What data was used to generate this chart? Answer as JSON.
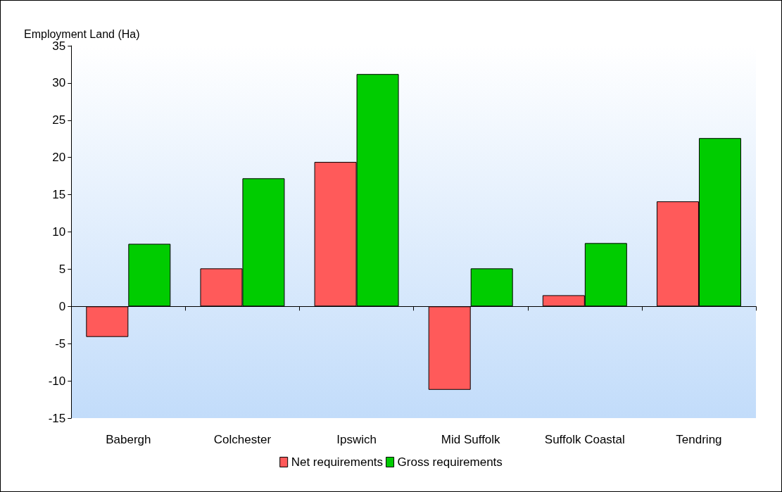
{
  "chart_data": {
    "type": "bar",
    "ylabel": "Employment Land (Ha)",
    "categories": [
      "Babergh",
      "Colchester",
      "Ipswich",
      "Mid Suffolk",
      "Suffolk Coastal",
      "Tendring"
    ],
    "series": [
      {
        "name": "Net requirements",
        "color": "#ff5a5a",
        "values": [
          -4.1,
          5.1,
          19.4,
          -11.2,
          1.5,
          14.1
        ]
      },
      {
        "name": "Gross requirements",
        "color": "#00cc00",
        "values": [
          8.4,
          17.2,
          31.2,
          5.1,
          8.5,
          22.6
        ]
      }
    ],
    "ylim": [
      -15,
      35
    ],
    "yticks": [
      -15,
      -10,
      -5,
      0,
      5,
      10,
      15,
      20,
      25,
      30,
      35
    ],
    "legend": "bottom"
  }
}
